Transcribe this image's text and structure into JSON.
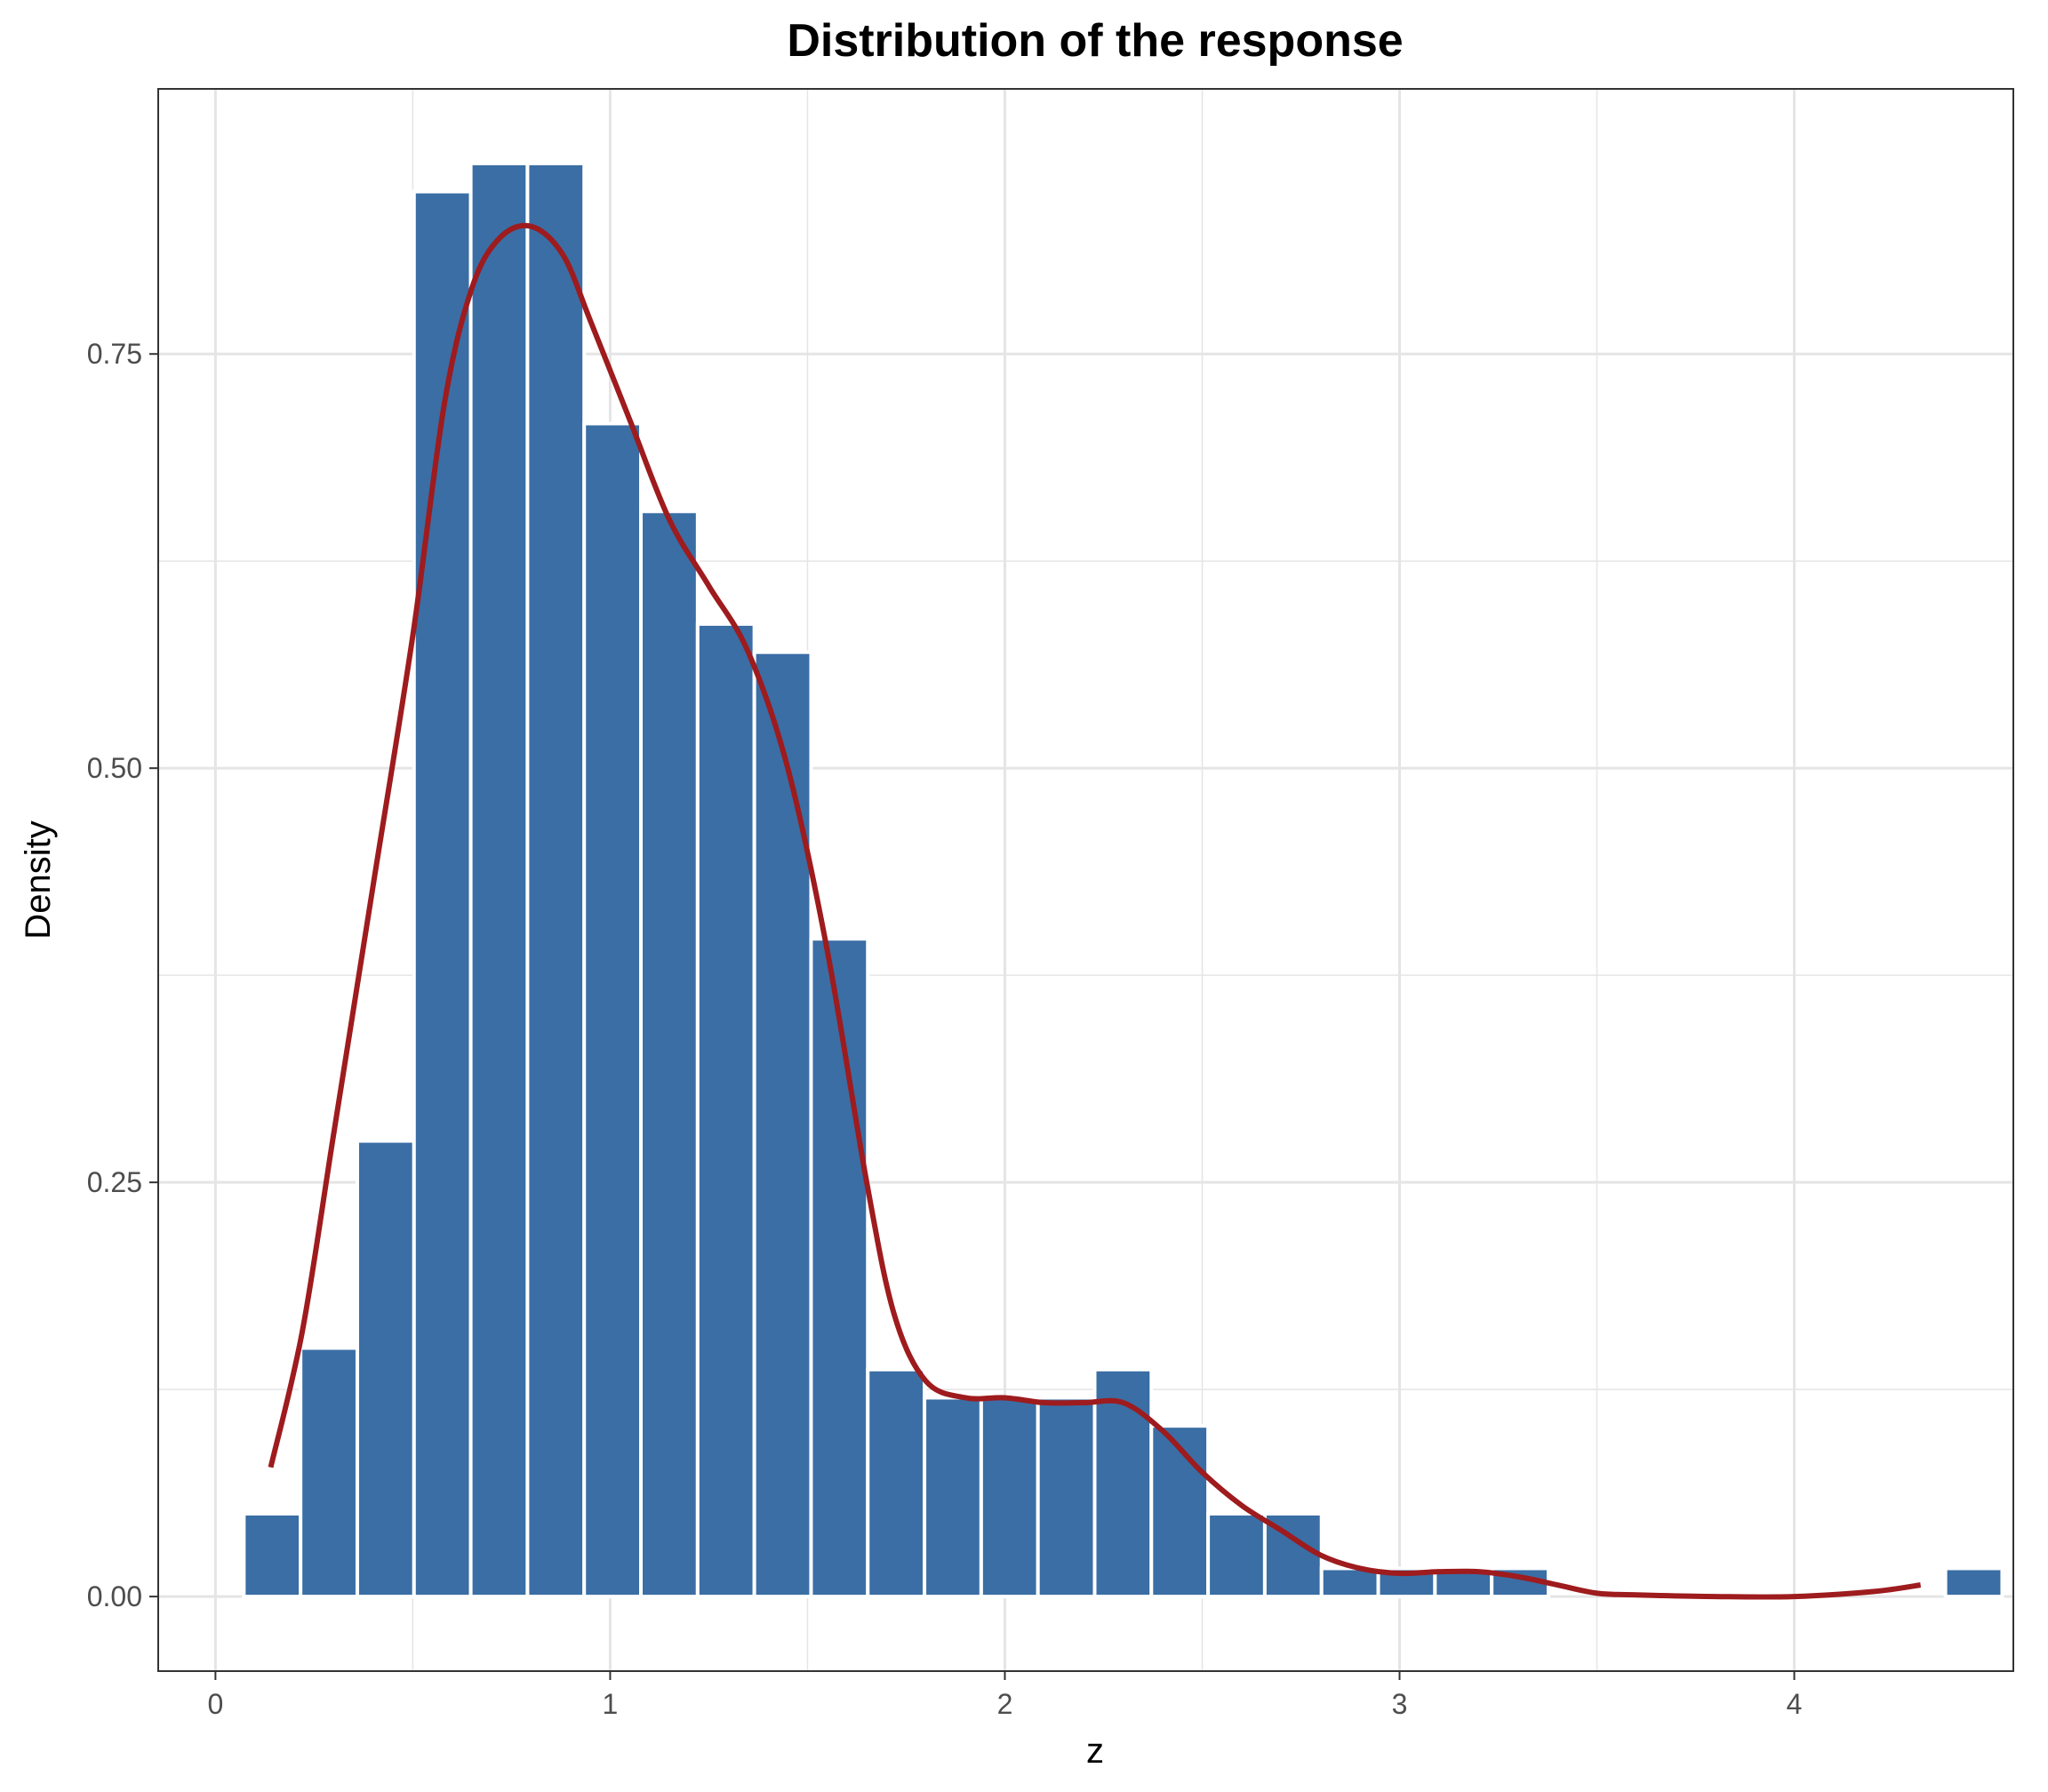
{
  "chart_data": {
    "type": "bar",
    "title": "Distribution of the response",
    "xlabel": "z",
    "ylabel": "Density",
    "xlim": [
      -0.145,
      4.555
    ],
    "ylim": [
      -0.045,
      0.91
    ],
    "x_ticks": [
      0,
      1,
      2,
      3,
      4
    ],
    "x_tick_labels": [
      "0",
      "1",
      "2",
      "3",
      "4"
    ],
    "y_ticks": [
      0,
      0.25,
      0.5,
      0.75
    ],
    "y_tick_labels": [
      "0.00",
      "0.25",
      "0.50",
      "0.75"
    ],
    "grid": true,
    "legend": "none",
    "bins": {
      "start": 0.072,
      "width": 0.1437,
      "values": [
        0.05,
        0.15,
        0.275,
        0.848,
        0.865,
        0.865,
        0.708,
        0.655,
        0.587,
        0.57,
        0.397,
        0.137,
        0.12,
        0.12,
        0.12,
        0.137,
        0.103,
        0.05,
        0.05,
        0.017,
        0.017,
        0.017,
        0.017,
        0,
        0,
        0,
        0,
        0,
        0,
        0,
        0.017
      ]
    },
    "density_curve": {
      "x": [
        0.14,
        0.22,
        0.3,
        0.4,
        0.5,
        0.58,
        0.65,
        0.72,
        0.8,
        0.88,
        0.95,
        1.05,
        1.15,
        1.25,
        1.35,
        1.45,
        1.55,
        1.65,
        1.72,
        1.8,
        1.9,
        2.0,
        2.1,
        2.2,
        2.3,
        2.4,
        2.5,
        2.6,
        2.7,
        2.8,
        2.9,
        3.0,
        3.1,
        3.2,
        3.3,
        3.4,
        3.5,
        3.6,
        3.8,
        4.0,
        4.2,
        4.32
      ],
      "y": [
        0.078,
        0.16,
        0.28,
        0.43,
        0.58,
        0.72,
        0.79,
        0.82,
        0.827,
        0.81,
        0.77,
        0.71,
        0.65,
        0.61,
        0.57,
        0.5,
        0.39,
        0.25,
        0.17,
        0.13,
        0.12,
        0.12,
        0.117,
        0.117,
        0.117,
        0.1,
        0.075,
        0.055,
        0.04,
        0.025,
        0.017,
        0.014,
        0.015,
        0.015,
        0.012,
        0.007,
        0.002,
        0.001,
        0.0,
        0.0,
        0.003,
        0.007
      ]
    },
    "bar_color": "#3a6ea5",
    "bar_edge_color": "#ffffff",
    "curve_color": "#9e1b1e",
    "grid_color": "#e5e5e5",
    "panel_border_color": "#333333"
  }
}
